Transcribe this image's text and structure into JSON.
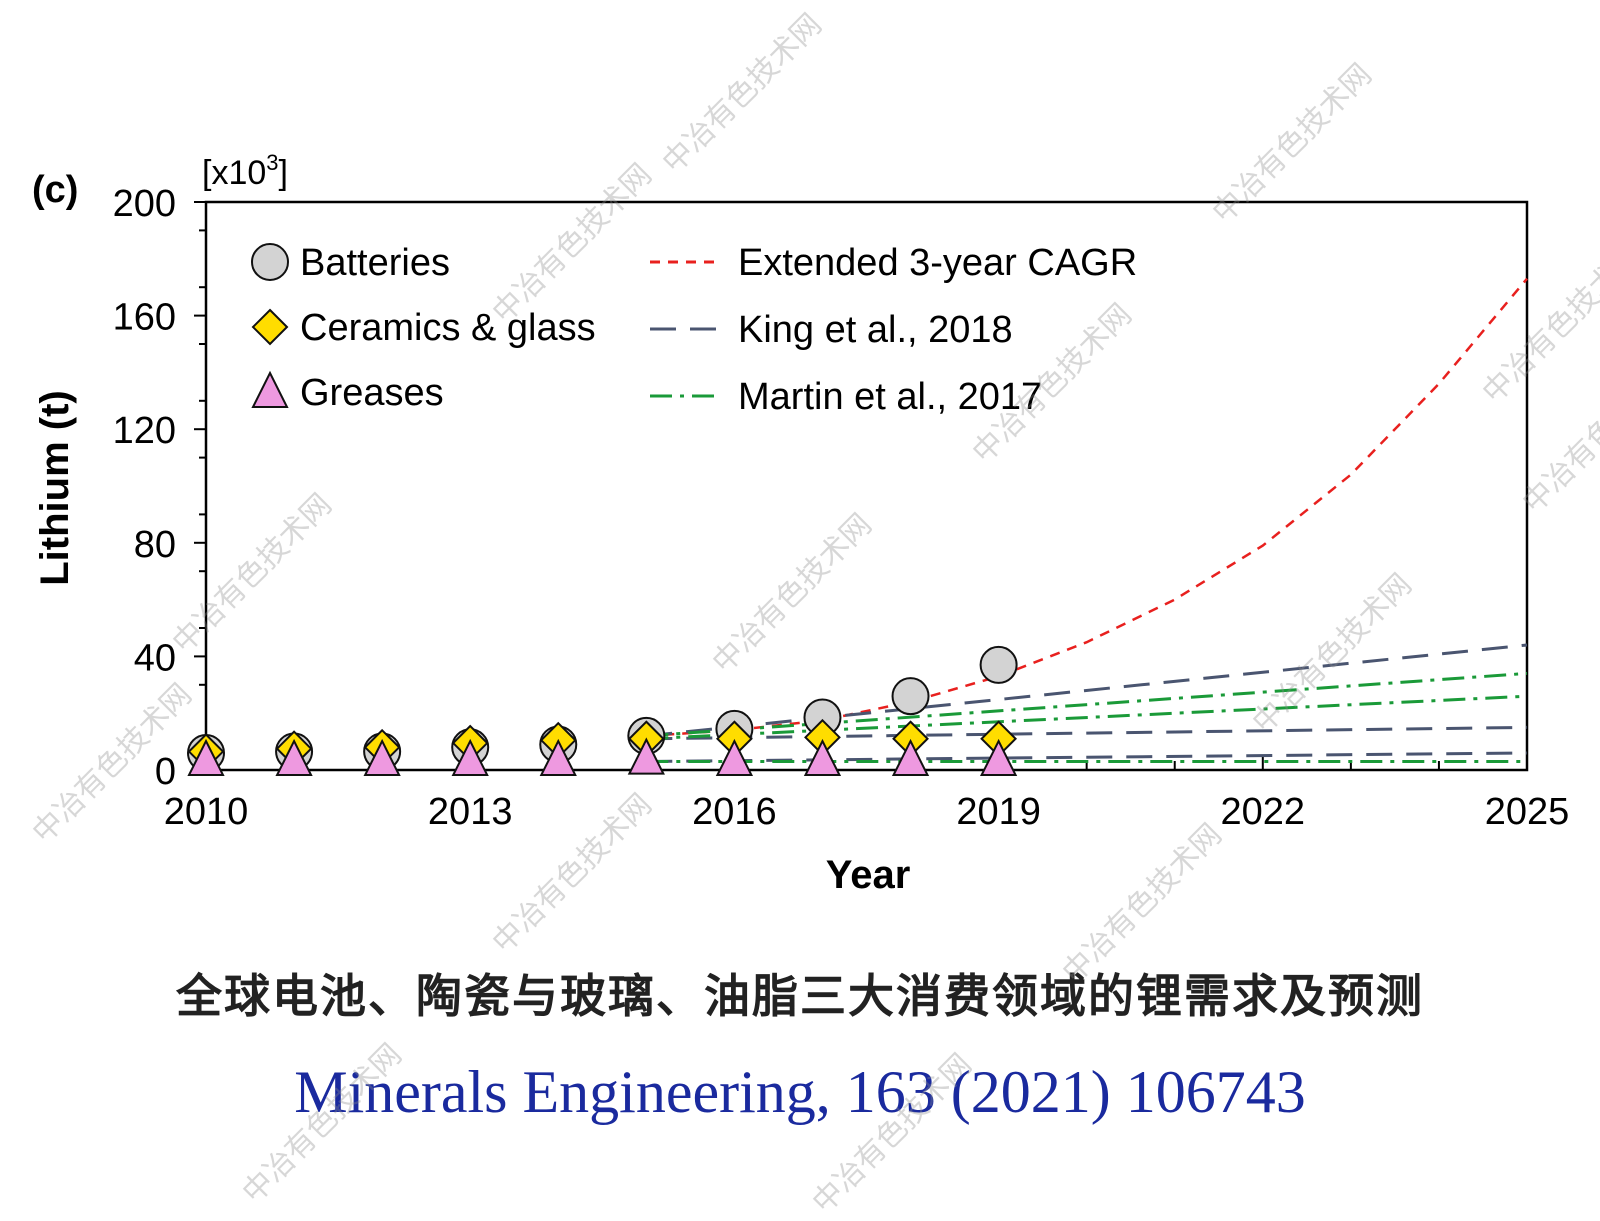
{
  "panel_label": "(c)",
  "y_multiplier": {
    "base": "[x10",
    "exp": "3",
    "close": "]"
  },
  "caption_zh": "全球电池、陶瓷与玻璃、油脂三大消费领域的锂需求及预测",
  "caption_ref": "Minerals Engineering, 163 (2021) 106743",
  "watermark": "中冶有色技术网",
  "colors": {
    "batteries_fill": "#d3d3d3",
    "ceramics_fill": "#ffdd00",
    "greases_fill": "#ee99e0",
    "cagr": "#e8201e",
    "king": "#4a5570",
    "martin": "#1a9a38",
    "caption_ref": "#1a2a9e"
  },
  "chart_data": {
    "type": "scatter",
    "xlabel": "Year",
    "ylabel": "Lithium (t)",
    "xlim": [
      2010,
      2025
    ],
    "ylim": [
      0,
      200
    ],
    "xticks": [
      2010,
      2013,
      2016,
      2019,
      2022,
      2025
    ],
    "yticks": [
      0,
      40,
      80,
      120,
      160,
      200
    ],
    "grid": false,
    "legend_position": "top-left",
    "series": [
      {
        "name": "Batteries",
        "type": "scatter",
        "marker": "circle",
        "x": [
          2010,
          2011,
          2012,
          2013,
          2014,
          2015,
          2016,
          2017,
          2018,
          2019
        ],
        "y": [
          6,
          6.5,
          6.5,
          8,
          9,
          12,
          14.5,
          18.5,
          26,
          37
        ]
      },
      {
        "name": "Ceramics & glass",
        "type": "scatter",
        "marker": "diamond",
        "x": [
          2010,
          2011,
          2012,
          2013,
          2014,
          2015,
          2016,
          2017,
          2018,
          2019
        ],
        "y": [
          6.5,
          7.5,
          8,
          9.5,
          10.5,
          11,
          11,
          11.5,
          11,
          11
        ]
      },
      {
        "name": "Greases",
        "type": "scatter",
        "marker": "triangle",
        "x": [
          2010,
          2011,
          2012,
          2013,
          2014,
          2015,
          2016,
          2017,
          2018,
          2019
        ],
        "y": [
          3.5,
          3.5,
          3.5,
          3.5,
          3.5,
          4,
          3.5,
          3.5,
          3.5,
          3.5
        ]
      },
      {
        "name": "Extended 3-year CAGR",
        "type": "line",
        "dash": "short",
        "x": [
          2015,
          2016,
          2017,
          2018,
          2019,
          2020,
          2021,
          2022,
          2023,
          2024,
          2025
        ],
        "y": [
          12,
          14,
          17.5,
          24,
          33,
          45,
          60,
          79,
          104,
          136,
          173
        ]
      },
      {
        "name": "King et al., 2018",
        "type": "line",
        "dash": "long",
        "group": "king",
        "x": [
          2015,
          2025
        ],
        "y": [
          12,
          44
        ]
      },
      {
        "type": "line",
        "dash": "long",
        "group": "king",
        "x": [
          2015,
          2025
        ],
        "y": [
          11,
          15
        ]
      },
      {
        "type": "line",
        "dash": "long",
        "group": "king",
        "x": [
          2015,
          2025
        ],
        "y": [
          3,
          6
        ]
      },
      {
        "name": "Martin et al., 2017",
        "type": "line",
        "dash": "dashdot",
        "group": "martin",
        "x": [
          2015,
          2025
        ],
        "y": [
          12,
          34
        ]
      },
      {
        "type": "line",
        "dash": "dashdot",
        "group": "martin",
        "x": [
          2015,
          2025
        ],
        "y": [
          11,
          26
        ]
      },
      {
        "type": "line",
        "dash": "dashdot",
        "group": "martin",
        "x": [
          2015,
          2025
        ],
        "y": [
          3,
          3
        ]
      }
    ]
  }
}
